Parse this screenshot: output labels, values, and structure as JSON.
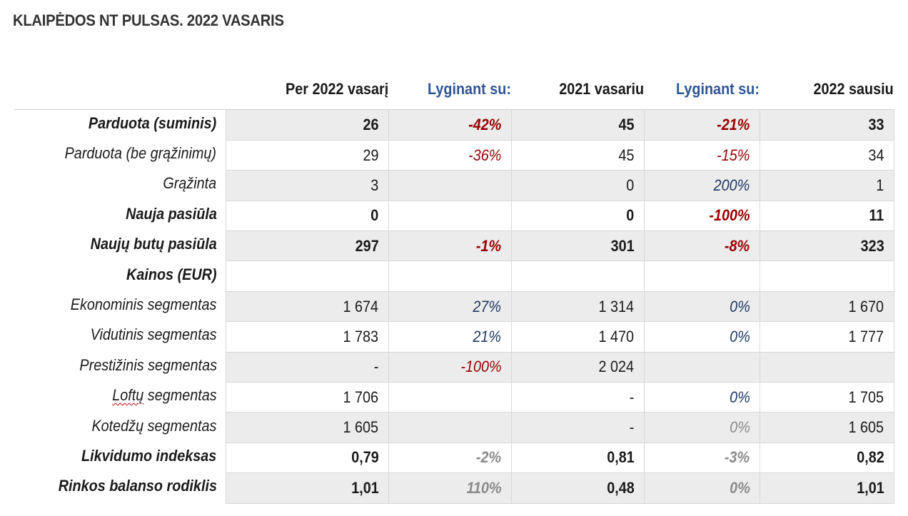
{
  "title": "KLAIPĖDOS NT PULSAS. 2022 VASARIS",
  "headers": [
    "Per 2022 vasarį",
    "Lyginant su:",
    "2021 vasariu",
    "Lyginant su:",
    "2022 sausiu"
  ],
  "colors": {
    "header_blue": "#2e5596",
    "negative_red": "#990000",
    "positive_blue": "#1f3864",
    "neutral_gray": "#8a8a8a",
    "row_shade": "#ececec"
  },
  "rows": [
    {
      "label": "Parduota (suminis)",
      "bold": true,
      "shade": true,
      "v1": "26",
      "p1": "-42%",
      "v2": "45",
      "p2": "-21%",
      "v3": "33"
    },
    {
      "label": "Parduota (be grąžinimų)",
      "bold": false,
      "shade": false,
      "v1": "29",
      "p1": "-36%",
      "v2": "45",
      "p2": "-15%",
      "v3": "34"
    },
    {
      "label": "Grąžinta",
      "bold": false,
      "shade": true,
      "v1": "3",
      "p1": "",
      "v2": "0",
      "p2": "200%",
      "v3": "1"
    },
    {
      "label": "Nauja pasiūla",
      "bold": true,
      "shade": false,
      "v1": "0",
      "p1": "",
      "v2": "0",
      "p2": "-100%",
      "v3": "11"
    },
    {
      "label": "Naujų butų pasiūla",
      "bold": true,
      "shade": true,
      "v1": "297",
      "p1": "-1%",
      "v2": "301",
      "p2": "-8%",
      "v3": "323"
    },
    {
      "label": "Kainos (EUR)",
      "bold": true,
      "shade": false,
      "v1": "",
      "p1": "",
      "v2": "",
      "p2": "",
      "v3": ""
    },
    {
      "label": "Ekonominis segmentas",
      "bold": false,
      "shade": true,
      "v1": "1 674",
      "p1": "27%",
      "v2": "1 314",
      "p2": "0%",
      "v3": "1 670"
    },
    {
      "label": "Vidutinis segmentas",
      "bold": false,
      "shade": false,
      "v1": "1 783",
      "p1": "21%",
      "v2": "1 470",
      "p2": "0%",
      "v3": "1 777"
    },
    {
      "label": "Prestižinis segmentas",
      "bold": false,
      "shade": true,
      "v1": "-",
      "p1": "-100%",
      "v2": "2 024",
      "p2": "",
      "v3": ""
    },
    {
      "label_word": "Loftų",
      "label_rest": " segmentas",
      "bold": false,
      "shade": false,
      "v1": "1 706",
      "p1": "",
      "v2": "-",
      "p2": "0%",
      "v3": "1 705"
    },
    {
      "label": "Kotedžų segmentas",
      "bold": false,
      "shade": true,
      "v1": "1 605",
      "p1": "",
      "v2": "-",
      "p2": "0%",
      "v3": "1 605"
    },
    {
      "label": "Likvidumo indeksas",
      "bold": true,
      "shade": false,
      "v1": "0,79",
      "p1": "-2%",
      "v2": "0,81",
      "p2": "-3%",
      "v3": "0,82"
    },
    {
      "label": "Rinkos balanso rodiklis",
      "bold": true,
      "shade": true,
      "v1": "1,01",
      "p1": "110%",
      "v2": "0,48",
      "p2": "0%",
      "v3": "1,01"
    }
  ]
}
